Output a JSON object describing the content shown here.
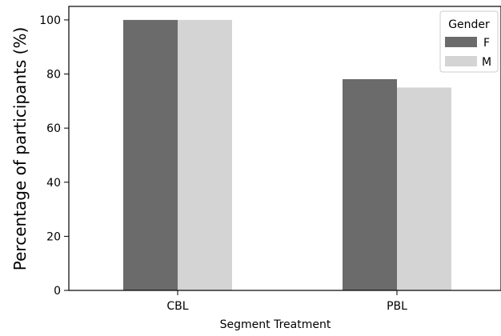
{
  "chart_data": {
    "type": "bar",
    "categories": [
      "CBL",
      "PBL"
    ],
    "series": [
      {
        "name": "F",
        "values": [
          100,
          78.1
        ]
      },
      {
        "name": "M",
        "values": [
          100,
          75.0
        ]
      }
    ],
    "xlabel": "Segment Treatment",
    "ylabel": "Percentage of participants (%)",
    "ylim": [
      0,
      105
    ],
    "yticks": [
      0,
      20,
      40,
      60,
      80,
      100
    ],
    "grid": false,
    "legend": {
      "title": "Gender",
      "placement": "top-right"
    },
    "colors": {
      "F": "#6b6b6b",
      "M": "#d4d4d4"
    }
  }
}
